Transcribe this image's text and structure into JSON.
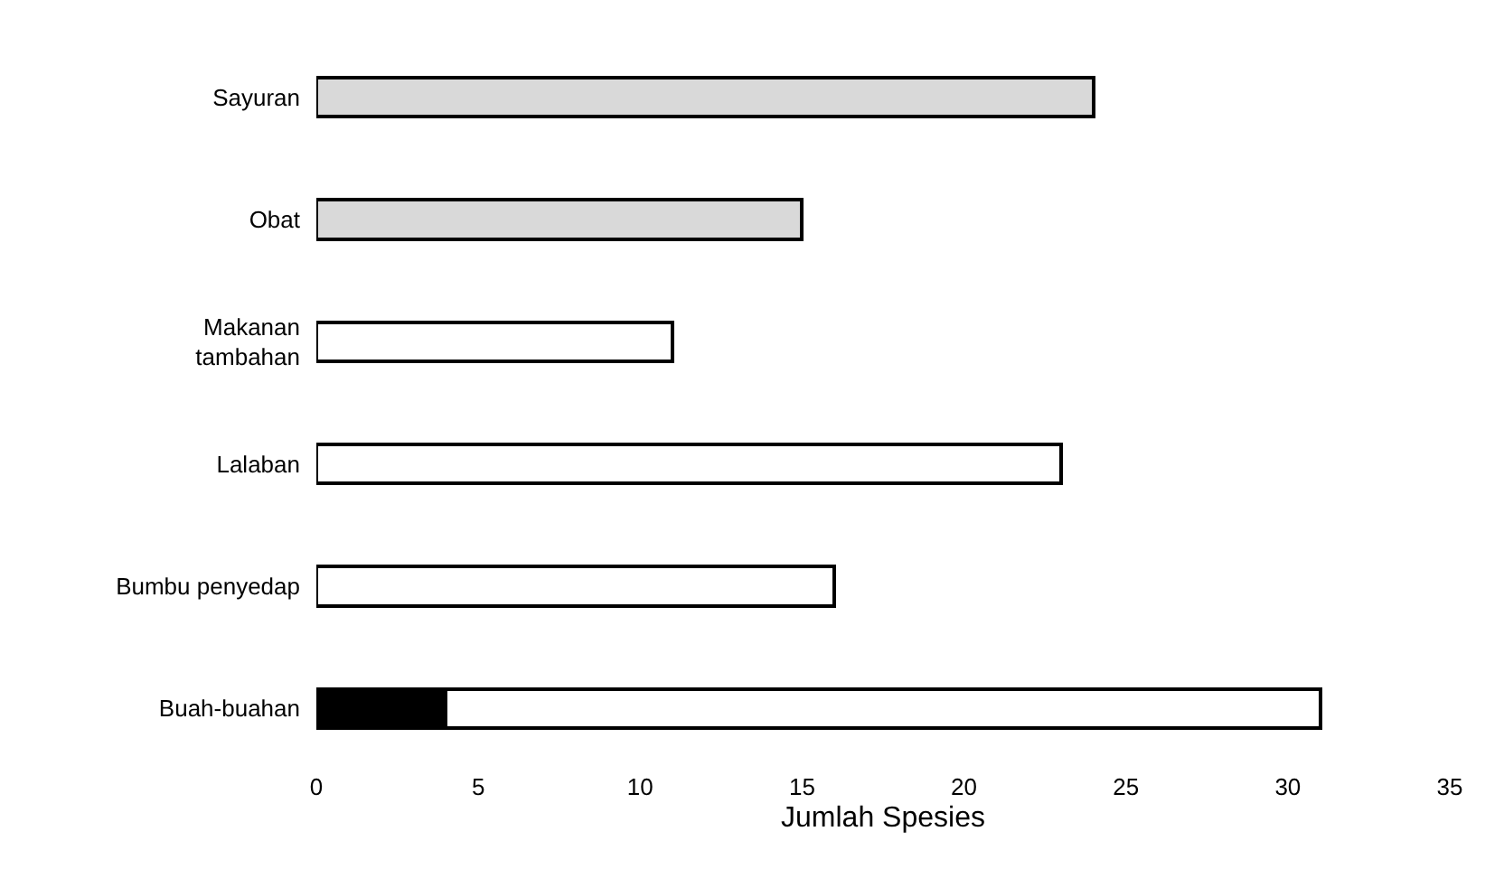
{
  "chart_data": {
    "type": "bar",
    "orientation": "horizontal",
    "stacked": true,
    "xlabel": "Jumlah Spesies",
    "categories": [
      "Sayuran",
      "Obat",
      "Makanan\ntambahan",
      "Lalaban",
      "Bumbu penyedap",
      "Buah-buahan"
    ],
    "series": [
      {
        "colors": [
          "#ffffff",
          "#ffffff",
          "#ffffff",
          "#ffffff",
          "#ffffff",
          "#000000"
        ],
        "values": [
          null,
          null,
          null,
          null,
          null,
          4
        ]
      },
      {
        "colors": [
          "#d9d9d9",
          "#d9d9d9",
          "#ffffff",
          "#ffffff",
          "#ffffff",
          "#ffffff"
        ],
        "values": [
          24,
          15,
          11,
          23,
          16,
          27
        ]
      }
    ],
    "xlim": [
      0,
      35
    ],
    "xticks": [
      0,
      5,
      10,
      15,
      20,
      25,
      30,
      35
    ]
  }
}
